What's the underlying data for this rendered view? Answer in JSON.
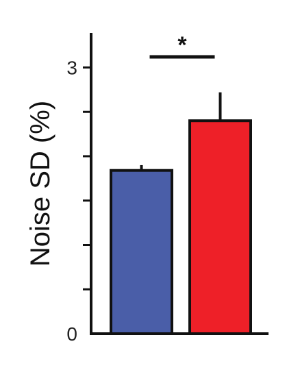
{
  "chart_data": {
    "type": "bar",
    "ylabel": "Noise SD (%)",
    "ylim": [
      0,
      3.6
    ],
    "ytick_labels": [
      "0",
      "3"
    ],
    "ytick_label_values": [
      0,
      3
    ],
    "yminor_ticks": [
      0.5,
      1,
      1.5,
      2,
      2.5,
      3
    ],
    "grid": false,
    "bars": [
      {
        "value": 1.84,
        "error": 0.06,
        "color": "#4a5ea8"
      },
      {
        "value": 2.4,
        "error": 0.32,
        "color": "#ee2028"
      }
    ],
    "significance": {
      "label": "*",
      "between": [
        0,
        1
      ],
      "level": 3.12
    }
  }
}
